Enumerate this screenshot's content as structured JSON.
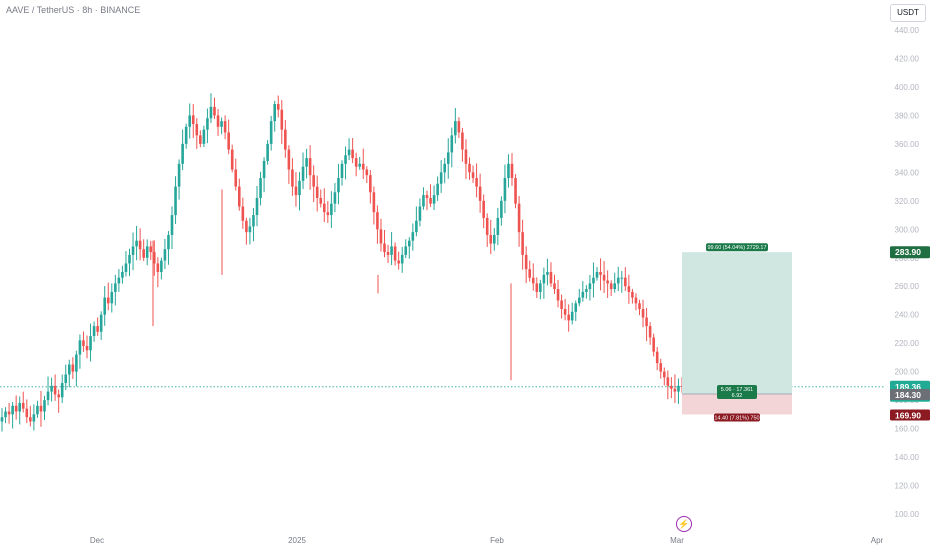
{
  "header": {
    "title": "AAVE / TetherUS · 8h · BINANCE"
  },
  "currency_button": {
    "label": "USDT"
  },
  "colors": {
    "up": "#26a69a",
    "down": "#ef5350",
    "profit_zone": "#cfe6e1",
    "loss_zone": "#f3d5d8",
    "price_line": "#26a69a",
    "label_green": "#1b7a4a",
    "label_red": "#8b1a22"
  },
  "position_tool": {
    "target_label": "99.60 (54.04%) 2729.17",
    "mid_label_line1": "5.06 · 17.361",
    "mid_label_line2": "6.92",
    "stop_label": "14.40 (7.81%) 750"
  },
  "price_badges": {
    "target": "283.90",
    "last_price": "189.36",
    "countdown": "06:54:14",
    "entry": "184.30",
    "stop": "169.90"
  },
  "chart_data": {
    "type": "candlestick",
    "title": "AAVE / TetherUS · 8h · BINANCE",
    "y_ticks": [
      440,
      420,
      400,
      380,
      360,
      340,
      320,
      300,
      280,
      260,
      240,
      220,
      200,
      180,
      160,
      140,
      120,
      100
    ],
    "y_tick_labels": [
      "440.00",
      "420.00",
      "400.00",
      "380.00",
      "360.00",
      "340.00",
      "320.00",
      "300.00",
      "280.00",
      "260.00",
      "240.00",
      "220.00",
      "200.00",
      "180.00",
      "160.00",
      "140.00",
      "120.00",
      "100.00"
    ],
    "ylim": [
      95,
      450
    ],
    "x_labels": [
      "Dec",
      "2025",
      "Feb",
      "Mar",
      "Apr"
    ],
    "close_path": [
      168,
      172,
      170,
      176,
      172,
      178,
      174,
      168,
      165,
      170,
      176,
      172,
      180,
      186,
      190,
      184,
      182,
      192,
      198,
      205,
      200,
      212,
      222,
      218,
      215,
      225,
      232,
      228,
      240,
      252,
      248,
      256,
      262,
      266,
      270,
      276,
      282,
      288,
      292,
      286,
      280,
      288,
      284,
      276,
      270,
      278,
      286,
      296,
      310,
      330,
      346,
      360,
      372,
      380,
      374,
      366,
      360,
      370,
      378,
      386,
      380,
      372,
      376,
      368,
      356,
      342,
      330,
      316,
      306,
      298,
      302,
      310,
      322,
      336,
      348,
      360,
      376,
      388,
      384,
      370,
      356,
      342,
      330,
      324,
      334,
      344,
      350,
      338,
      330,
      322,
      318,
      312,
      310,
      318,
      326,
      336,
      346,
      352,
      356,
      350,
      344,
      346,
      342,
      338,
      326,
      312,
      300,
      290,
      284,
      282,
      288,
      278,
      276,
      282,
      288,
      292,
      298,
      306,
      316,
      324,
      322,
      318,
      324,
      332,
      340,
      346,
      354,
      366,
      376,
      368,
      356,
      346,
      340,
      336,
      330,
      320,
      308,
      296,
      290,
      296,
      308,
      320,
      336,
      346,
      336,
      318,
      298,
      282,
      272,
      266,
      262,
      256,
      262,
      268,
      270,
      262,
      258,
      250,
      244,
      240,
      236,
      242,
      248,
      252,
      256,
      258,
      262,
      266,
      270,
      268,
      264,
      262,
      258,
      262,
      266,
      266,
      260,
      256,
      252,
      248,
      244,
      238,
      232,
      224,
      214,
      206,
      200,
      196,
      190,
      188,
      186,
      190,
      189.36
    ],
    "position": {
      "entry": 184.3,
      "target": 283.9,
      "stop": 169.9,
      "last": 189.36
    }
  }
}
